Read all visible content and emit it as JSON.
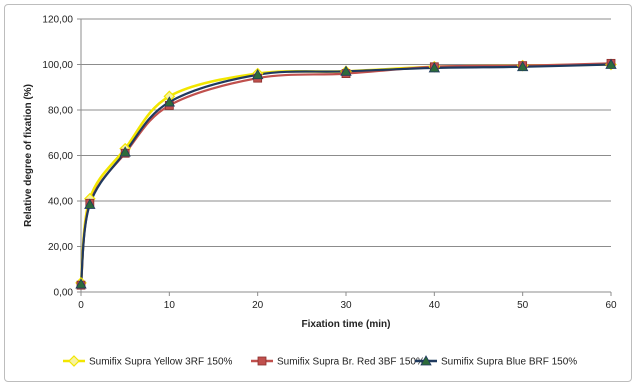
{
  "chart_data": {
    "type": "line",
    "title": "",
    "xlabel": "Fixation time (min)",
    "ylabel": "Relative degree of fixation (%)",
    "xlim": [
      0,
      60
    ],
    "ylim": [
      0,
      120
    ],
    "x_ticks": [
      "0",
      "10",
      "20",
      "30",
      "40",
      "50",
      "60"
    ],
    "y_ticks": [
      "0,00",
      "20,00",
      "40,00",
      "60,00",
      "80,00",
      "100,00",
      "120,00"
    ],
    "grid": "horizontal",
    "legend_position": "bottom",
    "x": [
      0,
      1,
      5,
      10,
      20,
      30,
      40,
      50,
      60
    ],
    "series": [
      {
        "name": "Sumifix Supra Yellow 3RF 150%",
        "values": [
          4,
          41,
          63,
          86,
          96,
          97,
          99,
          99.5,
          100
        ],
        "color": "#f2e600",
        "marker": "diamond"
      },
      {
        "name": "Sumifix Supra Br. Red 3BF 150%",
        "values": [
          3,
          39,
          61,
          82,
          94,
          96,
          99,
          99.5,
          100.5
        ],
        "color": "#c0504d",
        "marker": "square"
      },
      {
        "name": "Sumifix Supra Blue BRF 150%",
        "values": [
          3.5,
          38.5,
          61.5,
          83.5,
          95.5,
          97,
          98.5,
          99,
          100
        ],
        "color": "#1f3a5f",
        "marker": "triangle"
      }
    ]
  }
}
